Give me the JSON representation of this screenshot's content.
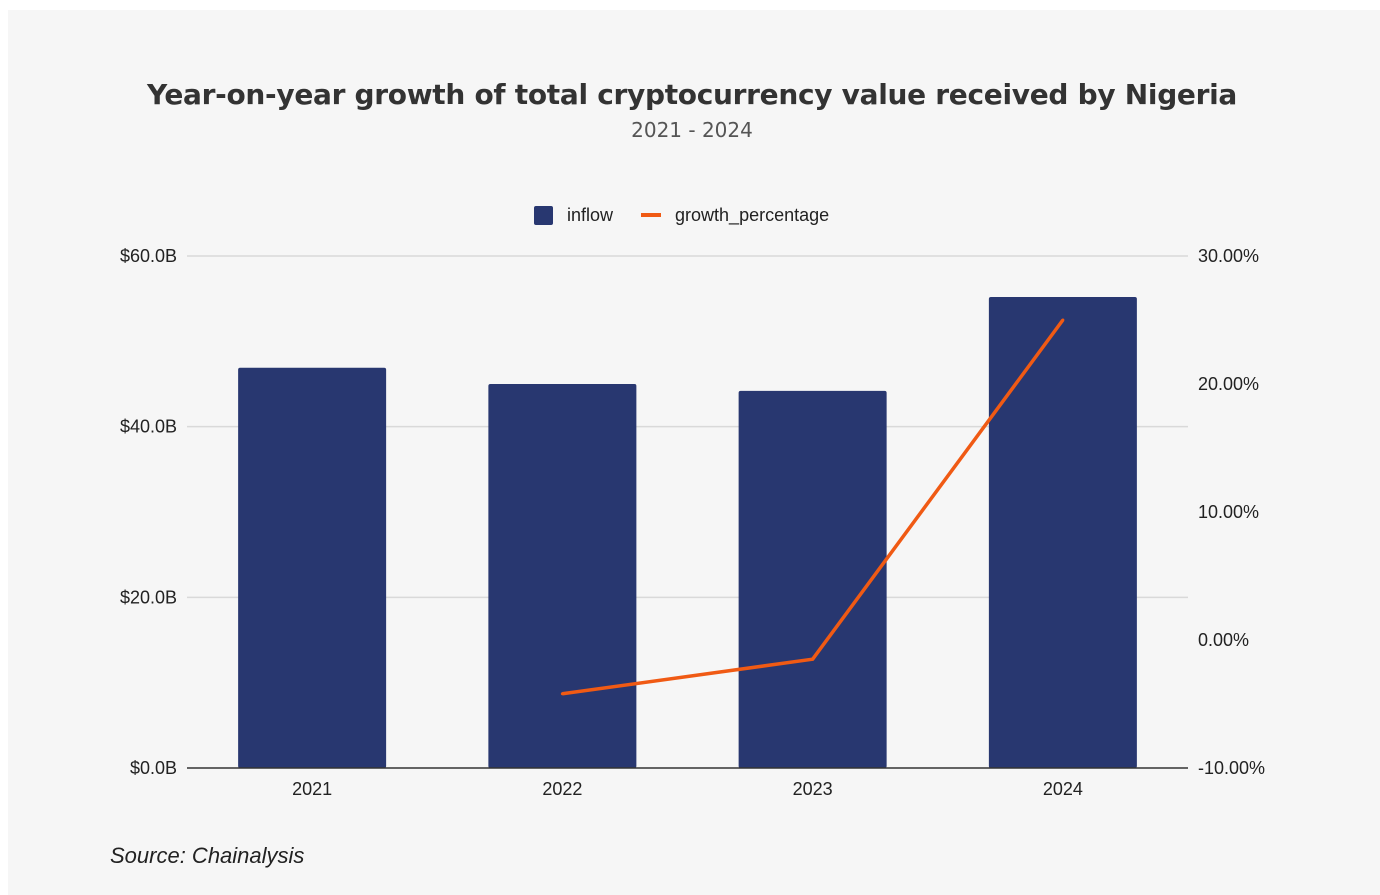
{
  "chart_data": {
    "type": "bar",
    "title": "Year-on-year growth of total cryptocurrency value received by Nigeria",
    "subtitle": "2021 - 2024",
    "categories": [
      "2021",
      "2022",
      "2023",
      "2024"
    ],
    "series": [
      {
        "name": "inflow",
        "type": "bar",
        "axis": "left",
        "color": "#283770",
        "values": [
          46.9,
          45.0,
          44.2,
          55.2
        ]
      },
      {
        "name": "growth_percentage",
        "type": "line",
        "axis": "right",
        "color": "#f05a14",
        "values": [
          null,
          -4.2,
          -1.5,
          25.0
        ]
      }
    ],
    "y_left": {
      "ylim": [
        0,
        60
      ],
      "ticks": [
        0,
        20,
        40,
        60
      ],
      "tick_labels": [
        "$0.0B",
        "$20.0B",
        "$40.0B",
        "$60.0B"
      ]
    },
    "y_right": {
      "ylim": [
        -10,
        30
      ],
      "ticks": [
        -10,
        0,
        10,
        20,
        30
      ],
      "tick_labels": [
        "-10.00%",
        "0.00%",
        "10.00%",
        "20.00%",
        "30.00%"
      ]
    },
    "grid": true,
    "legend": "top-center",
    "source": "Source: Chainalysis"
  }
}
